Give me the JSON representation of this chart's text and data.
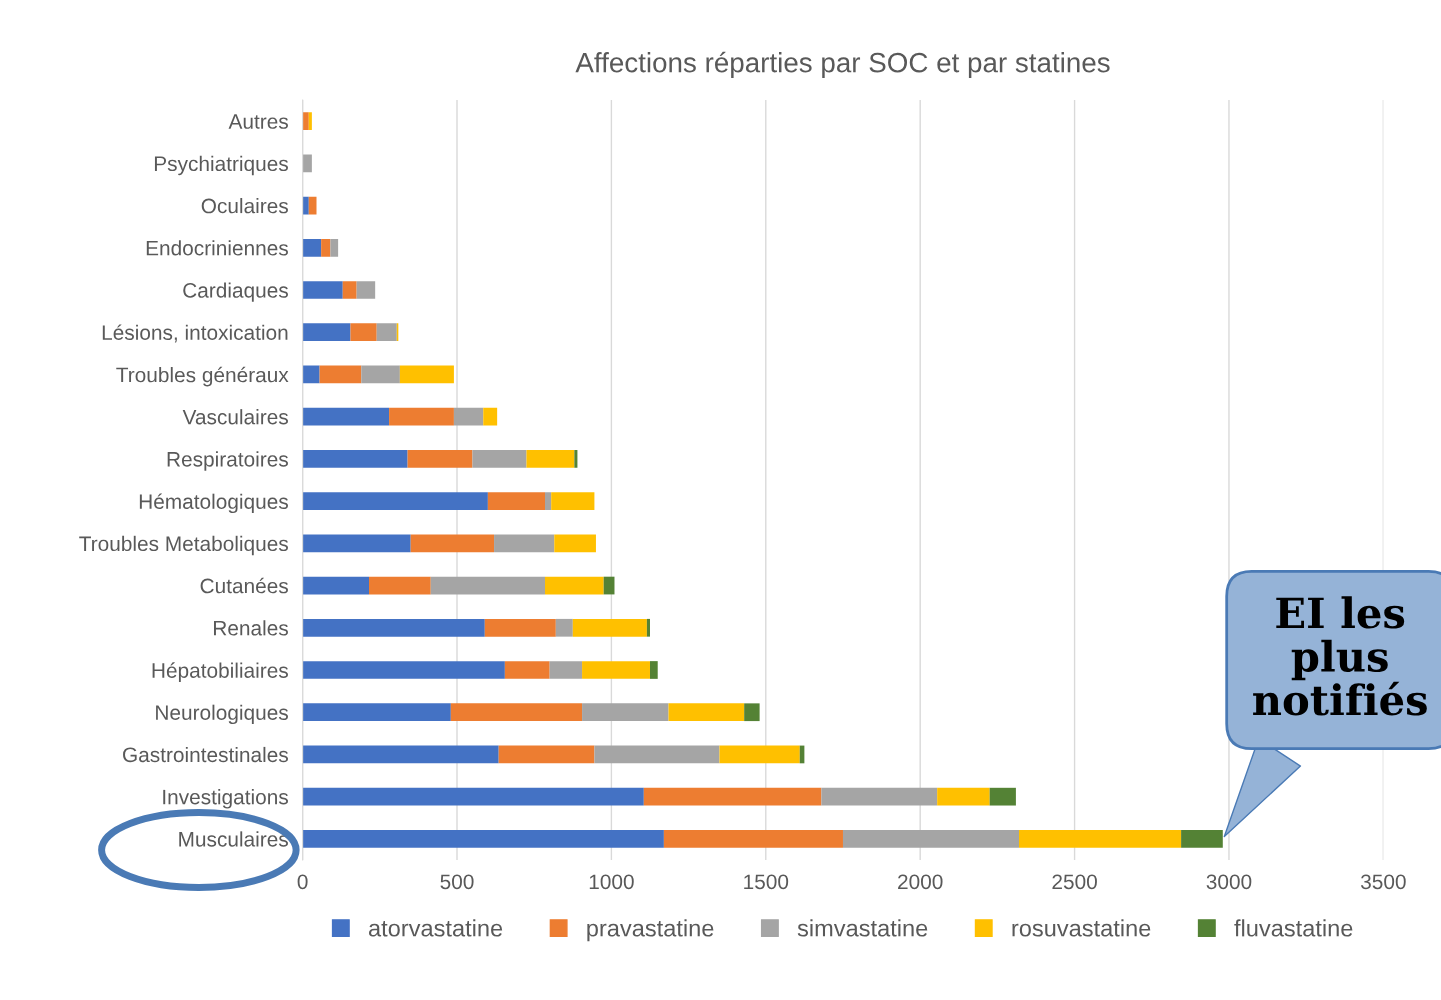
{
  "chart_data": {
    "type": "bar",
    "orientation": "horizontal",
    "stacked": true,
    "title": "Affections réparties par SOC et par statines",
    "categories": [
      "Autres",
      "Psychiatriques",
      "Oculaires",
      "Endocriniennes",
      "Cardiaques",
      "Lésions, intoxication",
      "Troubles généraux",
      "Vasculaires",
      "Respiratoires",
      "Hématologiques",
      "Troubles Metaboliques",
      "Cutanées",
      "Renales",
      "Hépatobiliaires",
      "Neurologiques",
      "Gastrointestinales",
      "Investigations",
      "Musculaires"
    ],
    "series": [
      {
        "name": "atorvastatine",
        "color": "#4472c4",
        "values": [
          null,
          null,
          20,
          60,
          130,
          155,
          55,
          280,
          340,
          600,
          350,
          215,
          590,
          655,
          480,
          635,
          1105,
          1170
        ]
      },
      {
        "name": "pravastatine",
        "color": "#ed7d31",
        "values": [
          20,
          null,
          25,
          30,
          45,
          85,
          135,
          210,
          210,
          185,
          270,
          200,
          230,
          145,
          425,
          310,
          575,
          580
        ]
      },
      {
        "name": "simvastatine",
        "color": "#a5a5a5",
        "values": [
          null,
          30,
          null,
          25,
          60,
          65,
          125,
          95,
          175,
          20,
          195,
          370,
          55,
          105,
          280,
          405,
          375,
          570
        ]
      },
      {
        "name": "rosuvastatine",
        "color": "#ffc000",
        "values": [
          10,
          null,
          null,
          null,
          null,
          5,
          175,
          45,
          155,
          140,
          135,
          190,
          240,
          220,
          245,
          260,
          170,
          525
        ]
      },
      {
        "name": "fluvastatine",
        "color": "#548235",
        "values": [
          null,
          null,
          null,
          null,
          null,
          null,
          null,
          null,
          10,
          null,
          null,
          35,
          10,
          25,
          50,
          15,
          85,
          135
        ]
      }
    ],
    "xlim": [
      0,
      3500
    ],
    "xticks": [
      0,
      500,
      1000,
      1500,
      2000,
      2500,
      3000,
      3500
    ],
    "grid": "x",
    "legend": "bottom",
    "annotations": [
      "EI les\nplus\nnotifiés"
    ]
  }
}
